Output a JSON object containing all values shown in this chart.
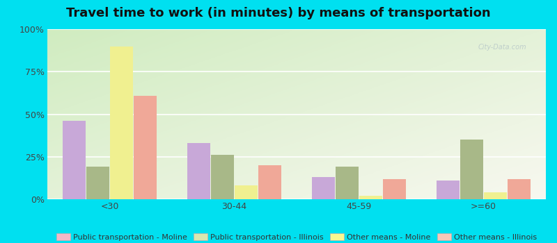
{
  "title": "Travel time to work (in minutes) by means of transportation",
  "categories": [
    "<30",
    "30-44",
    "45-59",
    ">=60"
  ],
  "series": {
    "Public transportation - Moline": [
      46,
      33,
      13,
      11
    ],
    "Public transportation - Illinois": [
      19,
      26,
      19,
      35
    ],
    "Other means - Moline": [
      90,
      8,
      2,
      4
    ],
    "Other means - Illinois": [
      61,
      20,
      12,
      12
    ]
  },
  "bar_colors": {
    "Public transportation - Moline": "#c8a8d8",
    "Public transportation - Illinois": "#a8b888",
    "Other means - Moline": "#f0f090",
    "Other means - Illinois": "#f0a898"
  },
  "legend_colors": {
    "Public transportation - Moline": "#f4b8c8",
    "Public transportation - Illinois": "#d8e8b0",
    "Other means - Moline": "#f8f890",
    "Other means - Illinois": "#f8c8b8"
  },
  "ylim": [
    0,
    100
  ],
  "yticks": [
    0,
    25,
    50,
    75,
    100
  ],
  "ytick_labels": [
    "0%",
    "25%",
    "50%",
    "75%",
    "100%"
  ],
  "background_color": "#00e0f0",
  "bar_width": 0.18,
  "title_fontsize": 13,
  "tick_fontsize": 9,
  "legend_fontsize": 8
}
